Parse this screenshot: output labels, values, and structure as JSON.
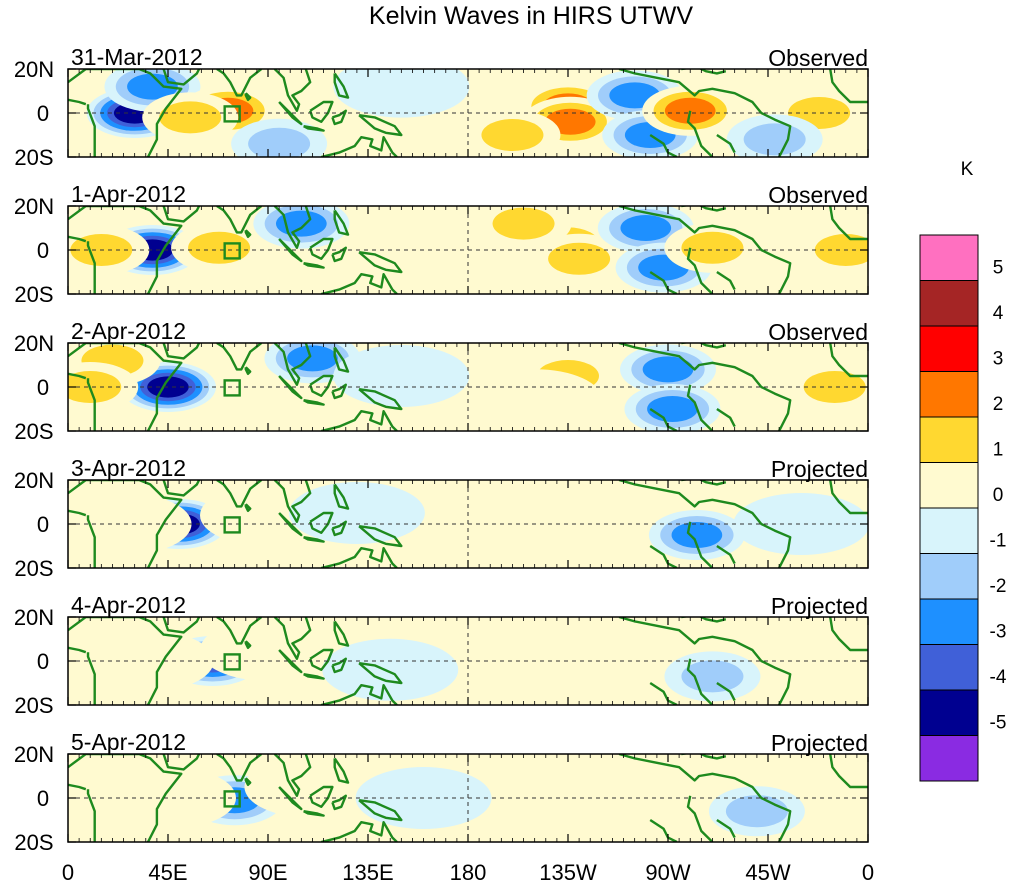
{
  "chart_data": {
    "type": "heatmap",
    "title": "Kelvin Waves in HIRS UTWV",
    "variable": "HIRS UTWV anomaly",
    "colorbar_unit": "K",
    "colorbar": {
      "levels": [
        -5,
        -4,
        -3,
        -2,
        -1,
        0,
        1,
        2,
        3,
        4,
        5
      ],
      "colors": [
        "#8a2be2",
        "#000090",
        "#4060d8",
        "#1e90ff",
        "#a0cdfa",
        "#d8f4fb",
        "#fffad0",
        "#ffd830",
        "#ff7700",
        "#ff0000",
        "#a52525",
        "#ff70c0"
      ]
    },
    "x_ticks": [
      "0",
      "45E",
      "90E",
      "135E",
      "180",
      "135W",
      "90W",
      "45W",
      "0"
    ],
    "x_range_deg": [
      0,
      360
    ],
    "y_ticks": [
      "20N",
      "0",
      "20S"
    ],
    "y_range_deg": [
      -20,
      20
    ],
    "panels": [
      {
        "date": "31-Mar-2012",
        "status": "Observed",
        "features": [
          {
            "lon": 30,
            "lat": 0,
            "v": -5
          },
          {
            "lon": 38,
            "lat": 12,
            "v": -3
          },
          {
            "lon": 72,
            "lat": 1,
            "v": 3
          },
          {
            "lon": 55,
            "lat": -2,
            "v": 2
          },
          {
            "lon": 95,
            "lat": -14,
            "v": -2
          },
          {
            "lon": 225,
            "lat": 3,
            "v": 3
          },
          {
            "lon": 226,
            "lat": -4,
            "v": 3
          },
          {
            "lon": 200,
            "lat": -10,
            "v": 2
          },
          {
            "lon": 255,
            "lat": 8,
            "v": -3
          },
          {
            "lon": 262,
            "lat": -10,
            "v": -3
          },
          {
            "lon": 280,
            "lat": 1,
            "v": 3
          },
          {
            "lon": 338,
            "lat": 0,
            "v": 2
          },
          {
            "lon": 150,
            "lat": 12,
            "v": -1
          },
          {
            "lon": 318,
            "lat": -12,
            "v": -2
          }
        ]
      },
      {
        "date": "1-Apr-2012",
        "status": "Observed",
        "features": [
          {
            "lon": 38,
            "lat": 0,
            "v": -5
          },
          {
            "lon": 68,
            "lat": 1,
            "v": 2
          },
          {
            "lon": 105,
            "lat": 12,
            "v": -3
          },
          {
            "lon": 225,
            "lat": 3,
            "v": 2
          },
          {
            "lon": 230,
            "lat": -4,
            "v": 2
          },
          {
            "lon": 205,
            "lat": 12,
            "v": 2
          },
          {
            "lon": 260,
            "lat": 10,
            "v": -3
          },
          {
            "lon": 268,
            "lat": -8,
            "v": -3
          },
          {
            "lon": 290,
            "lat": 1,
            "v": 2
          },
          {
            "lon": 350,
            "lat": 0,
            "v": 2
          },
          {
            "lon": 15,
            "lat": 0,
            "v": 2
          }
        ]
      },
      {
        "date": "2-Apr-2012",
        "status": "Observed",
        "features": [
          {
            "lon": 45,
            "lat": 0,
            "v": -5
          },
          {
            "lon": 110,
            "lat": 13,
            "v": -3
          },
          {
            "lon": 20,
            "lat": 12,
            "v": 2
          },
          {
            "lon": 10,
            "lat": 0,
            "v": 2
          },
          {
            "lon": 270,
            "lat": 8,
            "v": -3
          },
          {
            "lon": 272,
            "lat": -10,
            "v": -3
          },
          {
            "lon": 225,
            "lat": 5,
            "v": 2
          },
          {
            "lon": 210,
            "lat": -6,
            "v": 1
          },
          {
            "lon": 345,
            "lat": 0,
            "v": 2
          },
          {
            "lon": 150,
            "lat": 5,
            "v": -1
          }
        ]
      },
      {
        "date": "3-Apr-2012",
        "status": "Projected",
        "features": [
          {
            "lon": 50,
            "lat": 0,
            "v": -5
          },
          {
            "lon": 25,
            "lat": 0,
            "v": 1
          },
          {
            "lon": 90,
            "lat": 4,
            "v": 1
          },
          {
            "lon": 213,
            "lat": 9,
            "v": 1
          },
          {
            "lon": 215,
            "lat": -6,
            "v": 1
          },
          {
            "lon": 283,
            "lat": -5,
            "v": -3
          },
          {
            "lon": 130,
            "lat": 5,
            "v": -1
          },
          {
            "lon": 330,
            "lat": 0,
            "v": -1
          }
        ]
      },
      {
        "date": "4-Apr-2012",
        "status": "Projected",
        "features": [
          {
            "lon": 65,
            "lat": 0,
            "v": -4
          },
          {
            "lon": 35,
            "lat": 0,
            "v": 1
          },
          {
            "lon": 90,
            "lat": 5,
            "v": 1
          },
          {
            "lon": 245,
            "lat": 8,
            "v": 1
          },
          {
            "lon": 240,
            "lat": -8,
            "v": 1
          },
          {
            "lon": 290,
            "lat": -7,
            "v": -2
          },
          {
            "lon": 145,
            "lat": -4,
            "v": -1
          }
        ]
      },
      {
        "date": "5-Apr-2012",
        "status": "Projected",
        "features": [
          {
            "lon": 75,
            "lat": -1,
            "v": -3
          },
          {
            "lon": 45,
            "lat": 0,
            "v": 1
          },
          {
            "lon": 110,
            "lat": 5,
            "v": 1
          },
          {
            "lon": 250,
            "lat": 5,
            "v": 1
          },
          {
            "lon": 310,
            "lat": -6,
            "v": -2
          },
          {
            "lon": 160,
            "lat": 0,
            "v": -1
          }
        ]
      }
    ]
  }
}
